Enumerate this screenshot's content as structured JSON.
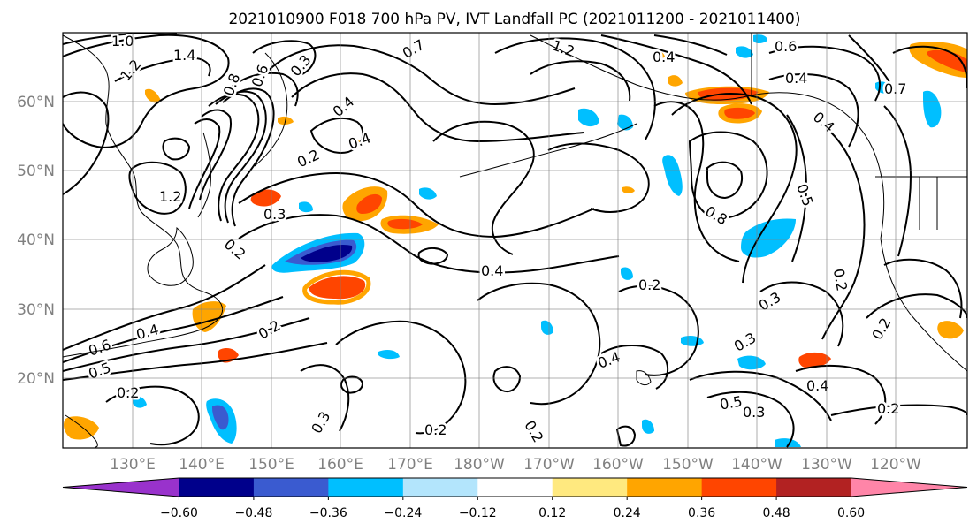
{
  "title": "2021010900 F018 700 hPa PV, IVT Landfall PC (2021011200 - 2021011400)",
  "lat_labels": [
    "60°N",
    "50°N",
    "40°N",
    "30°N",
    "20°N"
  ],
  "lon_labels": [
    "130°E",
    "140°E",
    "150°E",
    "160°E",
    "170°E",
    "180°W",
    "170°W",
    "160°W",
    "150°W",
    "140°W",
    "130°W",
    "120°W"
  ],
  "colorbar": {
    "ticks": [
      "−0.60",
      "−0.48",
      "−0.36",
      "−0.24",
      "−0.12",
      "0.12",
      "0.24",
      "0.36",
      "0.48",
      "0.60"
    ],
    "colors": [
      "#9932cc",
      "#00008b",
      "#3a5bd0",
      "#00bfff",
      "#b3e5fc",
      "#ffffff",
      "#ffe97f",
      "#ffa500",
      "#ff4500",
      "#b22222",
      "#ff85a8"
    ]
  },
  "contour_labels": [
    "1.0",
    "1.4",
    "1.2",
    "0.8",
    "0.6",
    "0.3",
    "0.7",
    "1.2",
    "0.4",
    "0.4",
    "0.6",
    "0.4",
    "0.7",
    "0.4",
    "0.2",
    "0.4",
    "1.2",
    "0.3",
    "0.8",
    "0.5",
    "0.2",
    "0.4",
    "0.2",
    "0.3",
    "0.2",
    "0.4",
    "0.6",
    "0.5",
    "0.2",
    "0.3",
    "0.2",
    "0.2",
    "0.4",
    "0.5",
    "0.3",
    "0.4",
    "0.2",
    "0.3",
    "0.2",
    "0.2"
  ],
  "colors": {
    "contour": "#000000",
    "grid": "#7f7f7f",
    "axis_label": "#808080"
  }
}
